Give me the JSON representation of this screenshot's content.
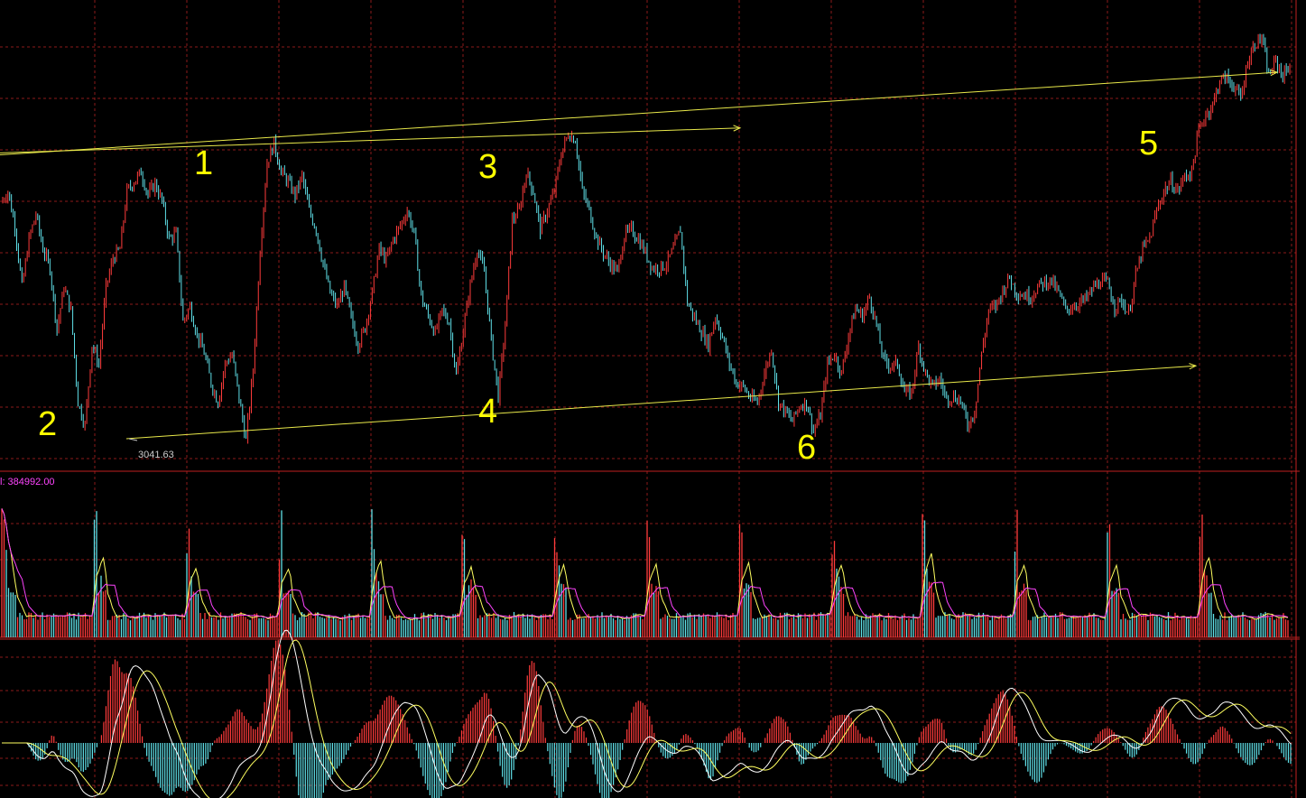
{
  "chart_data": [
    {
      "type": "line",
      "title": "",
      "annotations": {
        "wave_labels": [
          "1",
          "2",
          "3",
          "4",
          "5",
          "6"
        ],
        "low_marker_text": "3041.63"
      },
      "trendlines": [
        {
          "name": "upper channel",
          "x": [
            0,
            820
          ],
          "y": [
            3190,
            3203
          ]
        },
        {
          "name": "upper channel extension",
          "x": [
            0,
            1415
          ],
          "y": [
            3189,
            3232
          ]
        },
        {
          "name": "lower channel",
          "x": [
            140,
            1325
          ],
          "y": [
            3041,
            3079
          ]
        }
      ],
      "series": [
        {
          "values": [
            3164,
            3170,
            3152,
            3120,
            3145,
            3158,
            3140,
            3130,
            3098,
            3120,
            3108,
            3060,
            3048,
            3090,
            3080,
            3120,
            3135,
            3140,
            3170,
            3175,
            3180,
            3168,
            3174,
            3165,
            3145,
            3148,
            3102,
            3110,
            3095,
            3086,
            3070,
            3060,
            3080,
            3085,
            3062,
            3040,
            3077,
            3140,
            3185,
            3195,
            3180,
            3175,
            3168,
            3178,
            3160,
            3150,
            3132,
            3117,
            3110,
            3120,
            3104,
            3090,
            3099,
            3117,
            3140,
            3134,
            3145,
            3152,
            3160,
            3148,
            3115,
            3105,
            3096,
            3108,
            3102,
            3074,
            3098,
            3121,
            3140,
            3128,
            3092,
            3063,
            3100,
            3155,
            3160,
            3180,
            3170,
            3150,
            3160,
            3170,
            3190,
            3200,
            3197,
            3170,
            3160,
            3146,
            3138,
            3132,
            3128,
            3147,
            3150,
            3145,
            3138,
            3130,
            3130,
            3132,
            3140,
            3150,
            3112,
            3104,
            3097,
            3090,
            3105,
            3094,
            3080,
            3070,
            3068,
            3062,
            3060,
            3075,
            3088,
            3060,
            3055,
            3050,
            3058,
            3060,
            3045,
            3053,
            3080,
            3085,
            3075,
            3095,
            3109,
            3105,
            3115,
            3100,
            3082,
            3079,
            3080,
            3065,
            3065,
            3089,
            3075,
            3068,
            3072,
            3062,
            3063,
            3061,
            3048,
            3055,
            3085,
            3108,
            3110,
            3118,
            3125,
            3117,
            3116,
            3115,
            3120,
            3123,
            3123,
            3117,
            3108,
            3110,
            3112,
            3114,
            3120,
            3123,
            3122,
            3110,
            3113,
            3106,
            3126,
            3140,
            3145,
            3160,
            3170,
            3175,
            3170,
            3178,
            3180,
            3202,
            3210,
            3215,
            3228,
            3229,
            3225,
            3218,
            3238,
            3247,
            3250,
            3230,
            3238,
            3230,
            3236
          ]
        }
      ],
      "ylim": [
        3025,
        3265
      ]
    },
    {
      "type": "bar",
      "title": "",
      "header_text": "l: 384992.00",
      "series": [
        {
          "name": "volume",
          "note": "volume bars, spiky daily pattern"
        }
      ]
    },
    {
      "type": "line",
      "title": "",
      "series": [
        {
          "name": "histogram"
        },
        {
          "name": "fast line"
        },
        {
          "name": "slow line"
        }
      ]
    }
  ],
  "colors": {
    "background": "#000000",
    "grid": "#8b1a1a",
    "up": "#ff3b3b",
    "down": "#5fe0e8",
    "trendline": "#e8e84a",
    "label": "#ffff00",
    "ma_yellow": "#ffff60",
    "ma_magenta": "#ff44ff",
    "ma_white": "#ffffff",
    "header_text": "#ff44ff"
  }
}
